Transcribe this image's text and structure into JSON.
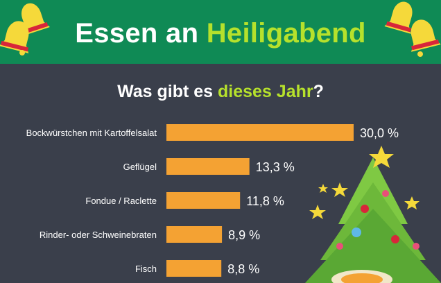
{
  "header": {
    "title_part1": "Essen an",
    "title_part2": "Heiligabend"
  },
  "subtitle": {
    "part1": "Was gibt es",
    "part2": "dieses Jahr",
    "part3": "?"
  },
  "colors": {
    "header_bg": "#0f8a55",
    "page_bg": "#3a3f4b",
    "bar": "#f4a233",
    "accent": "#b6e12c",
    "text": "#ffffff"
  },
  "chart_data": {
    "type": "bar",
    "orientation": "horizontal",
    "categories": [
      "Bockwürstchen mit Kartoffelsalat",
      "Geflügel",
      "Fondue / Raclette",
      "Rinder- oder Schweinebraten",
      "Fisch"
    ],
    "values": [
      30.0,
      13.3,
      11.8,
      8.9,
      8.8
    ],
    "value_labels": [
      "30,0 %",
      "13,3 %",
      "11,8 %",
      "8,9 %",
      "8,8 %"
    ],
    "xlim": [
      0,
      30
    ],
    "grid": false,
    "legend": "none"
  },
  "decorations": [
    "bell-icon",
    "christmas-tree-icon",
    "star-icon"
  ]
}
